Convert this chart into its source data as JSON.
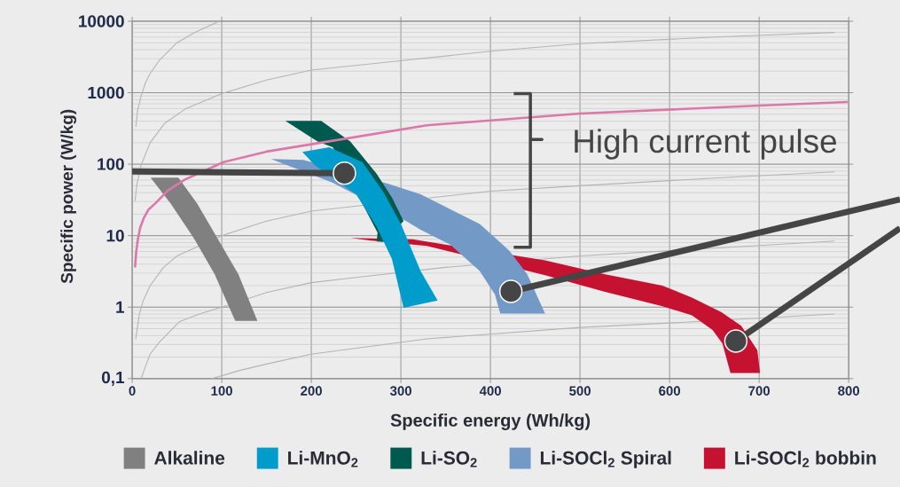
{
  "chart_data": {
    "type": "area",
    "xlabel": "Specific energy (Wh/kg)",
    "ylabel": "Specific power (W/kg)",
    "xlim": [
      0,
      800
    ],
    "ylim": [
      0.1,
      10000
    ],
    "xticks": [
      0,
      100,
      200,
      300,
      400,
      500,
      600,
      700,
      800
    ],
    "yticks": [
      {
        "value": 0.1,
        "label": "0,1"
      },
      1,
      10,
      100,
      1000,
      10000
    ],
    "log": "y",
    "grid": true,
    "legend": "bottom",
    "annotations": [
      "High current pulse"
    ],
    "series": [
      {
        "type": "line",
        "color": "#b4b4b4",
        "x": [
          4.2,
          6,
          10,
          15,
          20,
          30,
          50,
          70,
          97
        ],
        "values": [
          335,
          560,
          900,
          1400,
          1850,
          2800,
          5000,
          7000,
          10000
        ]
      },
      {
        "type": "line",
        "color": "#b4b4b4",
        "x": [
          3.3,
          5,
          10,
          20,
          36,
          60,
          100,
          150,
          200,
          290,
          400,
          500,
          650,
          784
        ],
        "values": [
          31,
          50,
          97,
          200,
          370,
          600,
          970,
          1500,
          2070,
          2720,
          3800,
          4840,
          6000,
          6960
        ]
      },
      {
        "type": "line",
        "color": "#b4b4b4",
        "x": [
          4,
          8,
          12,
          20,
          35,
          50,
          100,
          150,
          200,
          400,
          500,
          650,
          784
        ],
        "values": [
          0.36,
          0.8,
          1.2,
          2.0,
          3.6,
          5.2,
          10,
          16,
          22,
          42,
          50,
          64,
          78
        ]
      },
      {
        "type": "line",
        "color": "#b4b4b4",
        "x": [
          10,
          15,
          20,
          30,
          53,
          75,
          100,
          150,
          200,
          250,
          350,
          500,
          650,
          784
        ],
        "values": [
          0.1,
          0.15,
          0.22,
          0.32,
          0.63,
          0.8,
          1.0,
          1.6,
          2.2,
          2.6,
          3.6,
          5.2,
          6.7,
          8.4
        ]
      },
      {
        "type": "line",
        "color": "#b4b4b4",
        "x": [
          89,
          120,
          150,
          200,
          329,
          500,
          600,
          784
        ],
        "values": [
          0.1,
          0.13,
          0.16,
          0.22,
          0.36,
          0.52,
          0.6,
          0.8
        ]
      },
      {
        "name": "Li-SOCl$_{2}$ bobbin",
        "color": "#c41230",
        "x": [
          244,
          313,
          461,
          527,
          592,
          625,
          658,
          680,
          698,
          701,
          668,
          659,
          648,
          625,
          592,
          527,
          461,
          329,
          265
        ],
        "values": [
          9.3,
          8.9,
          4.5,
          2.9,
          2.0,
          1.36,
          0.85,
          0.55,
          0.25,
          0.12,
          0.12,
          0.31,
          0.48,
          0.77,
          1.03,
          1.65,
          2.8,
          7.2,
          8.6
        ]
      },
      {
        "name": "Li-SOCl$_{2}$ Spiral",
        "color": "#7399c6",
        "x": [
          155,
          191,
          286,
          322,
          355,
          388,
          421,
          441,
          461,
          411,
          405,
          388,
          355,
          322,
          306,
          224
        ],
        "values": [
          118,
          115,
          53,
          38,
          23.5,
          14.6,
          6.2,
          2.9,
          0.81,
          0.81,
          1.5,
          3.2,
          7.5,
          12.1,
          16,
          55
        ]
      },
      {
        "name": "Li-SO$_{2}$",
        "color": "#00594f",
        "x": [
          171,
          211,
          243.5,
          273,
          290,
          303,
          280,
          273,
          274,
          224,
          207
        ],
        "values": [
          405,
          405,
          208,
          73,
          34,
          16,
          8.2,
          8.3,
          11,
          172,
          208
        ]
      },
      {
        "name": "Li-MnO$_{2}$",
        "color": "#009ccb",
        "x": [
          190,
          220,
          257,
          280,
          300,
          322,
          341,
          303,
          290,
          273,
          250,
          204
        ],
        "values": [
          149,
          172,
          107,
          41.5,
          14.6,
          3.2,
          1.24,
          0.98,
          4.7,
          13.3,
          38,
          97
        ]
      },
      {
        "name": "Alkaline",
        "color": "#808080",
        "x": [
          20.5,
          51.6,
          72.4,
          95.4,
          118.5,
          139.8,
          115.1,
          92,
          69.1,
          42.8
        ],
        "values": [
          65,
          65,
          28.4,
          9.1,
          2.9,
          0.64,
          0.64,
          2.9,
          9.1,
          28.4
        ]
      },
      {
        "type": "line",
        "color": "#db78a8",
        "x": [
          3.3,
          4.5,
          6.5,
          9,
          13,
          18,
          26,
          40,
          59,
          102,
          150,
          200,
          329,
          500,
          700,
          798
        ],
        "values": [
          3.7,
          6,
          9.1,
          13,
          17.7,
          23,
          28.4,
          43,
          61,
          107,
          150,
          190,
          350,
          510,
          660,
          740
        ]
      }
    ]
  }
}
